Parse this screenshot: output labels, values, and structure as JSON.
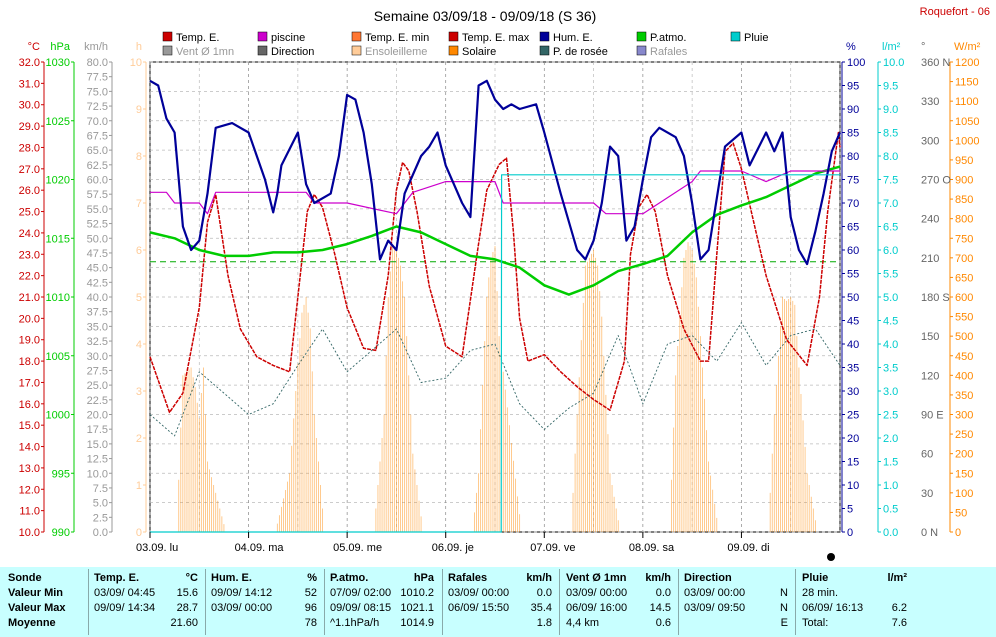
{
  "header": {
    "title": "Semaine 03/09/18 - 09/09/18 (S 36)",
    "station": "Roquefort - 06"
  },
  "legend": [
    {
      "label": "Temp. E.",
      "color": "#cc0000"
    },
    {
      "label": "piscine",
      "color": "#cc00cc"
    },
    {
      "label": "Temp. E. min",
      "color": "#ff7733"
    },
    {
      "label": "Temp. E. max",
      "color": "#cc0000"
    },
    {
      "label": "Hum. E.",
      "color": "#000099"
    },
    {
      "label": "P.atmo.",
      "color": "#00cc00"
    },
    {
      "label": "Pluie",
      "color": "#00cccc"
    },
    {
      "label": "Vent Ø 1mn",
      "color": "#999999"
    },
    {
      "label": "Direction",
      "color": "#666666"
    },
    {
      "label": "Ensoleilleme",
      "color": "#ffcc99"
    },
    {
      "label": "Solaire",
      "color": "#ff8800"
    },
    {
      "label": "P. de rosée",
      "color": "#336666"
    },
    {
      "label": "Rafales",
      "color": "#8888cc"
    }
  ],
  "axes": {
    "temp": {
      "unit": "°C",
      "color": "#cc0000",
      "min": 10,
      "max": 32,
      "step": 1
    },
    "press": {
      "unit": "hPa",
      "color": "#00cc00",
      "min": 990,
      "max": 1030,
      "step": 5
    },
    "wind": {
      "unit": "km/h",
      "color": "#999999",
      "min": 0,
      "max": 80,
      "step": 2.5
    },
    "sun": {
      "unit": "h",
      "color": "#ffcc99",
      "min": 0,
      "max": 10,
      "step": 1
    },
    "hum": {
      "unit": "%",
      "color": "#000099",
      "min": 0,
      "max": 100,
      "step": 5
    },
    "rain": {
      "unit": "l/m²",
      "color": "#00cccc",
      "min": 0,
      "max": 10,
      "step": 0.5
    },
    "dir": {
      "unit": "°",
      "color": "#666666",
      "ticks": [
        {
          "v": 0,
          "l": "0 N"
        },
        {
          "v": 30,
          "l": "30"
        },
        {
          "v": 60,
          "l": "60"
        },
        {
          "v": 90,
          "l": "90 E"
        },
        {
          "v": 120,
          "l": "120"
        },
        {
          "v": 150,
          "l": "150"
        },
        {
          "v": 180,
          "l": "180 S"
        },
        {
          "v": 210,
          "l": "210"
        },
        {
          "v": 240,
          "l": "240"
        },
        {
          "v": 270,
          "l": "270 O"
        },
        {
          "v": 300,
          "l": "300"
        },
        {
          "v": 330,
          "l": "330"
        },
        {
          "v": 360,
          "l": "360 N"
        }
      ]
    },
    "solar": {
      "unit": "W/m²",
      "color": "#ff8800",
      "min": 0,
      "max": 1200,
      "step": 50
    }
  },
  "chart_data": {
    "type": "line",
    "x_unit": "hours since 03/09 00:00",
    "day_labels": [
      "03.09. lu",
      "04.09. ma",
      "05.09. me",
      "06.09. je",
      "07.09. ve",
      "08.09. sa",
      "09.09. di"
    ],
    "series": [
      {
        "name": "Temp. E.",
        "unit": "°C",
        "color": "#cc0000",
        "x": [
          0,
          4.75,
          8,
          12,
          14,
          16,
          19,
          22,
          26,
          30,
          34,
          38.3,
          40,
          42,
          45,
          48,
          52,
          55,
          58,
          60,
          61.5,
          63,
          65,
          68,
          72,
          76,
          80,
          82,
          85,
          86.8,
          88.5,
          90,
          92,
          96,
          100,
          104,
          108,
          112,
          115.5,
          117,
          119,
          121,
          123,
          126,
          130,
          134,
          136,
          138,
          140,
          142,
          144,
          150,
          155,
          160,
          163,
          165,
          167.6,
          168
        ],
        "y": [
          18.2,
          15.6,
          16.5,
          20.5,
          24.5,
          25.8,
          22,
          19.5,
          18.2,
          17.8,
          17.5,
          25,
          25.8,
          25.2,
          23,
          20.5,
          18.6,
          18.5,
          22,
          26,
          27.3,
          26.9,
          25,
          21.5,
          18.7,
          18.2,
          23.5,
          26,
          27.2,
          27.5,
          24,
          20,
          18,
          18.3,
          17.5,
          16.8,
          16.2,
          15.7,
          18,
          23,
          25.2,
          25.8,
          25,
          22,
          19.5,
          18,
          18,
          23,
          27.8,
          28.2,
          27,
          22,
          19,
          17.8,
          21,
          25,
          28.7,
          28
        ]
      },
      {
        "name": "P.atmo.",
        "unit": "hPa",
        "color": "#00cc00",
        "x": [
          0,
          6,
          12,
          18,
          24,
          30,
          36,
          42,
          48,
          54,
          60,
          66,
          72,
          78,
          84,
          90,
          96,
          102,
          108,
          114,
          120,
          126,
          132,
          138,
          144,
          150,
          156,
          162,
          168
        ],
        "y": [
          1015.5,
          1015,
          1014,
          1013.5,
          1013.5,
          1013.8,
          1013.8,
          1014,
          1014.5,
          1015.2,
          1016,
          1015.5,
          1014.5,
          1013.5,
          1013.2,
          1012.5,
          1011,
          1010.2,
          1011,
          1012.2,
          1012.8,
          1013.5,
          1015.5,
          1017,
          1017.8,
          1018.5,
          1019.5,
          1020.5,
          1021.1
        ]
      },
      {
        "name": "piscine",
        "unit": "°C",
        "color": "#cc00cc",
        "x": [
          0,
          4,
          6,
          12,
          14,
          16,
          24,
          30,
          38,
          40,
          48,
          60,
          64,
          72,
          78,
          84,
          86,
          96,
          108,
          111,
          120,
          132,
          134,
          144,
          150,
          156,
          168
        ],
        "y": [
          25.9,
          25.9,
          25.4,
          25.4,
          24.9,
          25.9,
          25.9,
          25.9,
          25.9,
          25.4,
          25.4,
          24.9,
          25.9,
          26.4,
          26.4,
          26.4,
          25.4,
          25.4,
          25.4,
          24.9,
          24.9,
          26.4,
          26.9,
          26.9,
          26.4,
          26.9,
          26.9
        ]
      },
      {
        "name": "Hum. E.",
        "unit": "%",
        "color": "#000099",
        "x": [
          0,
          2,
          4,
          6,
          8,
          10,
          12,
          14,
          16,
          20,
          24,
          28,
          30,
          31,
          32,
          36,
          38,
          40,
          44,
          46,
          48,
          50,
          52,
          54,
          56,
          58,
          60,
          62,
          66,
          68,
          70,
          72,
          76,
          78,
          80,
          82,
          84,
          86,
          88,
          90,
          94,
          96,
          100,
          104,
          106,
          108,
          110,
          112,
          114,
          116,
          118,
          120,
          122,
          124,
          128,
          130,
          132,
          134,
          136,
          140,
          144,
          146,
          150,
          152,
          154,
          156,
          158,
          160,
          162,
          164,
          166,
          168
        ],
        "y": [
          96,
          95,
          88,
          85,
          65,
          60,
          62,
          72,
          86,
          87,
          85,
          75,
          68,
          72,
          78,
          85,
          74,
          70,
          72,
          80,
          93,
          92,
          85,
          74,
          58,
          62,
          60,
          72,
          80,
          82,
          85,
          78,
          70,
          67,
          95,
          96,
          92,
          90,
          91,
          90,
          91,
          85,
          72,
          60,
          58,
          62,
          70,
          82,
          80,
          62,
          65,
          75,
          84,
          86,
          84,
          80,
          70,
          58,
          60,
          82,
          85,
          78,
          85,
          81,
          85,
          67,
          60,
          57,
          64,
          72,
          81,
          85
        ]
      },
      {
        "name": "P. de rosée",
        "unit": "°C",
        "color": "#336666",
        "x": [
          0,
          6,
          12,
          18,
          24,
          30,
          36,
          42,
          48,
          54,
          60,
          66,
          72,
          78,
          84,
          90,
          96,
          102,
          108,
          114,
          120,
          126,
          132,
          138,
          144,
          150,
          156,
          162,
          168
        ],
        "y": [
          15.5,
          14.5,
          17.5,
          16.5,
          15.5,
          16,
          17.8,
          19.5,
          17.5,
          18.5,
          19.5,
          17,
          17.2,
          18.5,
          18.8,
          16,
          14.8,
          15.8,
          16.5,
          19.2,
          16,
          18.8,
          19.2,
          18,
          19.8,
          17.8,
          19.2,
          19.5,
          17.8
        ]
      },
      {
        "name": "Pluie",
        "unit": "l/m²",
        "color": "#00cccc",
        "x": [
          0,
          85.5,
          85.6,
          86.2,
          86.3,
          168
        ],
        "y": [
          0,
          0,
          7.6,
          7.6,
          7.6,
          7.6
        ]
      }
    ],
    "bars": [
      {
        "name": "Solaire",
        "unit": "W/m²",
        "color": "#ff8800",
        "days": [
          {
            "start": 6.5,
            "end": 18.5,
            "peaks": [
              [
                8,
                400
              ],
              [
                10,
                420
              ],
              [
                11,
                370
              ],
              [
                12,
                290
              ],
              [
                13,
                420
              ],
              [
                14,
                180
              ],
              [
                16,
                100
              ]
            ]
          },
          {
            "start": 30.5,
            "end": 42.5,
            "peaks": [
              [
                34,
                150
              ],
              [
                36,
                430
              ],
              [
                37,
                560
              ],
              [
                38,
                600
              ],
              [
                39,
                520
              ],
              [
                40,
                300
              ]
            ]
          },
          {
            "start": 54.5,
            "end": 66.5,
            "peaks": [
              [
                57,
                300
              ],
              [
                58,
                600
              ],
              [
                59,
                730
              ],
              [
                60,
                720
              ],
              [
                61,
                680
              ],
              [
                62,
                600
              ],
              [
                64,
                200
              ]
            ]
          },
          {
            "start": 78.5,
            "end": 90.5,
            "peaks": [
              [
                80,
                150
              ],
              [
                82,
                600
              ],
              [
                83,
                700
              ],
              [
                84,
                730
              ],
              [
                85,
                500
              ]
            ]
          },
          {
            "start": 102.5,
            "end": 114.5,
            "peaks": [
              [
                104,
                300
              ],
              [
                106,
                680
              ],
              [
                107,
                700
              ],
              [
                108,
                720
              ],
              [
                109,
                680
              ],
              [
                110,
                550
              ],
              [
                112,
                150
              ]
            ]
          },
          {
            "start": 126.5,
            "end": 138.5,
            "peaks": [
              [
                128,
                400
              ],
              [
                130,
                700
              ],
              [
                131,
                740
              ],
              [
                132,
                720
              ],
              [
                133,
                650
              ],
              [
                134,
                500
              ],
              [
                136,
                180
              ]
            ]
          },
          {
            "start": 150.5,
            "end": 162.5,
            "peaks": [
              [
                152,
                300
              ],
              [
                154,
                600
              ],
              [
                155,
                590
              ],
              [
                156,
                600
              ],
              [
                157,
                580
              ],
              [
                158,
                420
              ],
              [
                160,
                150
              ]
            ]
          }
        ]
      }
    ]
  },
  "stats": {
    "sonde": {
      "h1": "Sonde",
      "min": "Valeur Min",
      "max": "Valeur Max",
      "avg": "Moyenne"
    },
    "temp": {
      "h1": "Temp. E.",
      "h2": "°C",
      "min_d": "03/09/ 04:45",
      "min_v": "15.6",
      "max_d": "09/09/ 14:34",
      "max_v": "28.7",
      "avg_v": "21.60"
    },
    "hum": {
      "h1": "Hum. E.",
      "h2": "%",
      "min_d": "09/09/ 14:12",
      "min_v": "52",
      "max_d": "03/09/ 00:00",
      "max_v": "96",
      "avg_v": "78"
    },
    "press": {
      "h1": "P.atmo.",
      "h2": "hPa",
      "min_d": "07/09/ 02:00",
      "min_v": "1010.2",
      "max_d": "09/09/ 08:15",
      "max_v": "1021.1",
      "avg_d": "^1.1hPa/h",
      "avg_v": "1014.9"
    },
    "gust": {
      "h1": "Rafales",
      "h2": "km/h",
      "min_d": "03/09/ 00:00",
      "min_v": "0.0",
      "max_d": "06/09/ 15:50",
      "max_v": "35.4",
      "avg_v": "1.8"
    },
    "wind": {
      "h1": "Vent Ø 1mn",
      "h2": "km/h",
      "min_d": "03/09/ 00:00",
      "min_v": "0.0",
      "max_d": "06/09/ 16:00",
      "max_v": "14.5",
      "avg_d": "4,4 km",
      "avg_v": "0.6"
    },
    "dir": {
      "h1": "Direction",
      "min_d": "03/09/ 00:00",
      "min_v": "N",
      "max_d": "03/09/ 09:50",
      "max_v": "N",
      "avg_v": "E"
    },
    "rain": {
      "h1": "Pluie",
      "h2": "l/m²",
      "min_d": "28 min.",
      "max_d": "06/09/ 16:13",
      "max_v": "6.2",
      "avg_d": "Total:",
      "avg_v": "7.6"
    }
  }
}
